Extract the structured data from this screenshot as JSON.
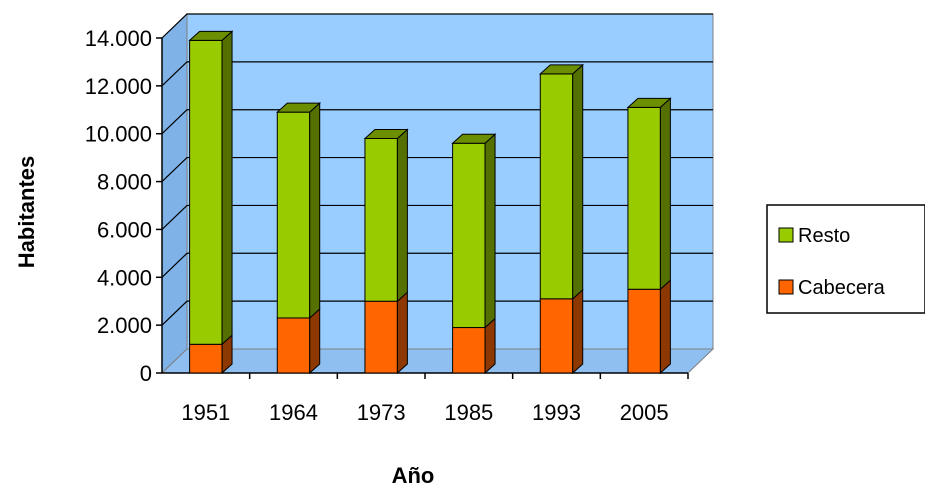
{
  "chart_data": {
    "type": "bar",
    "stacked": true,
    "three_d": true,
    "categories": [
      "1951",
      "1964",
      "1973",
      "1985",
      "1993",
      "2005"
    ],
    "series": [
      {
        "name": "Cabecera",
        "values": [
          1200,
          2300,
          3000,
          1900,
          3100,
          3500
        ],
        "color": "#ff6600"
      },
      {
        "name": "Resto",
        "values": [
          12700,
          8600,
          6800,
          7700,
          9400,
          7600
        ],
        "color": "#99cc00"
      }
    ],
    "ylim": [
      0,
      14000
    ],
    "yticks": [
      0,
      2000,
      4000,
      6000,
      8000,
      10000,
      12000,
      14000
    ],
    "ytick_labels": [
      "0",
      "2.000",
      "4.000",
      "6.000",
      "8.000",
      "10.000",
      "12.000",
      "14.000"
    ],
    "xlabel": "Año",
    "ylabel": "Habitantes",
    "title": "",
    "grid": true,
    "legend_position": "right",
    "legend_order": [
      "Resto",
      "Cabecera"
    ],
    "wall_color": "#99ccff",
    "gridline_color": "#000000"
  }
}
